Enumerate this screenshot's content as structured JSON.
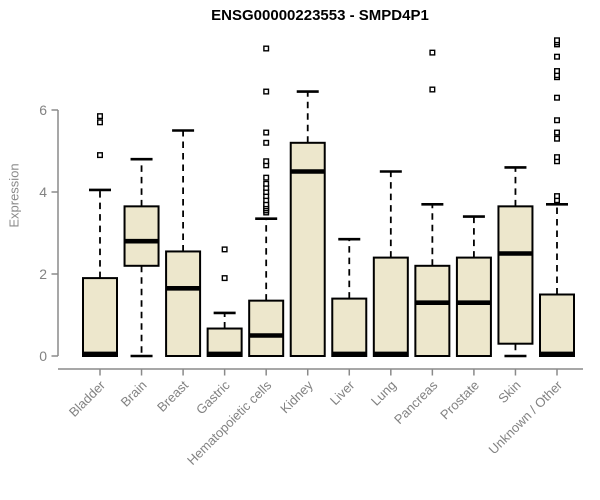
{
  "chart_data": {
    "type": "boxplot",
    "title": "ENSG00000223553 - SMPD4P1",
    "xlabel": "",
    "ylabel": "Expression",
    "ylim": [
      0,
      6
    ],
    "yticks": [
      0,
      2,
      4,
      6
    ],
    "grid": false,
    "legend": "none",
    "categories": [
      "Bladder",
      "Brain",
      "Breast",
      "Gastric",
      "Hematopoietic cells",
      "Kidney",
      "Liver",
      "Lung",
      "Pancreas",
      "Prostate",
      "Skin",
      "Unknown / Other"
    ],
    "series": [
      {
        "name": "Bladder",
        "whisker_low": 0,
        "q1": 0,
        "median": 0.05,
        "q3": 1.9,
        "whisker_high": 4.05,
        "outliers": [
          4.9,
          5.7,
          5.85
        ]
      },
      {
        "name": "Brain",
        "whisker_low": 0,
        "q1": 2.2,
        "median": 2.8,
        "q3": 3.65,
        "whisker_high": 4.8,
        "outliers": []
      },
      {
        "name": "Breast",
        "whisker_low": 0,
        "q1": 0,
        "median": 1.65,
        "q3": 2.55,
        "whisker_high": 5.5,
        "outliers": []
      },
      {
        "name": "Gastric",
        "whisker_low": 0,
        "q1": 0,
        "median": 0.05,
        "q3": 0.67,
        "whisker_high": 1.05,
        "outliers": [
          1.9,
          2.6
        ]
      },
      {
        "name": "Hematopoietic cells",
        "whisker_low": 0,
        "q1": 0,
        "median": 0.5,
        "q3": 1.35,
        "whisker_high": 3.35,
        "outliers": [
          3.5,
          3.55,
          3.6,
          3.65,
          3.7,
          3.8,
          3.9,
          4.0,
          4.1,
          4.2,
          4.35,
          4.65,
          4.75,
          5.2,
          5.45,
          6.45,
          7.5
        ]
      },
      {
        "name": "Kidney",
        "whisker_low": 0,
        "q1": 0,
        "median": 4.5,
        "q3": 5.2,
        "whisker_high": 6.45,
        "outliers": []
      },
      {
        "name": "Liver",
        "whisker_low": 0,
        "q1": 0,
        "median": 0.05,
        "q3": 1.4,
        "whisker_high": 2.85,
        "outliers": []
      },
      {
        "name": "Lung",
        "whisker_low": 0,
        "q1": 0,
        "median": 0.05,
        "q3": 2.4,
        "whisker_high": 4.5,
        "outliers": []
      },
      {
        "name": "Pancreas",
        "whisker_low": 0,
        "q1": 0,
        "median": 1.3,
        "q3": 2.2,
        "whisker_high": 3.7,
        "outliers": [
          6.5,
          7.4
        ]
      },
      {
        "name": "Prostate",
        "whisker_low": 0,
        "q1": 0,
        "median": 1.3,
        "q3": 2.4,
        "whisker_high": 3.4,
        "outliers": []
      },
      {
        "name": "Skin",
        "whisker_low": 0,
        "q1": 0.3,
        "median": 2.5,
        "q3": 3.65,
        "whisker_high": 4.6,
        "outliers": []
      },
      {
        "name": "Unknown / Other",
        "whisker_low": 0,
        "q1": 0,
        "median": 0.05,
        "q3": 1.5,
        "whisker_high": 3.7,
        "outliers": [
          3.8,
          3.9,
          4.75,
          4.85,
          5.3,
          5.45,
          5.75,
          6.3,
          6.8,
          6.85,
          6.95,
          7.3,
          7.6,
          7.65,
          7.7
        ]
      }
    ],
    "colors": {
      "box_fill": "#EDE7CC",
      "box_stroke": "#000000",
      "axis": "#8a8a8a",
      "tick_label": "#828282",
      "title": "#000000",
      "background": "#ffffff"
    }
  }
}
